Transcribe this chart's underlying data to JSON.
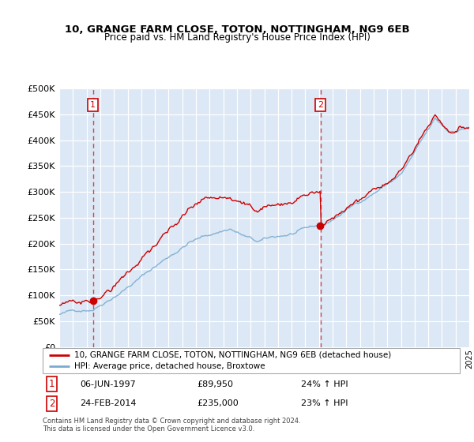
{
  "title": "10, GRANGE FARM CLOSE, TOTON, NOTTINGHAM, NG9 6EB",
  "subtitle": "Price paid vs. HM Land Registry's House Price Index (HPI)",
  "legend_line1": "10, GRANGE FARM CLOSE, TOTON, NOTTINGHAM, NG9 6EB (detached house)",
  "legend_line2": "HPI: Average price, detached house, Broxtowe",
  "purchase1_date": "06-JUN-1997",
  "purchase1_price": 89950,
  "purchase1_label": "1",
  "purchase1_hpi_text": "24% ↑ HPI",
  "purchase1_year": 1997.46,
  "purchase2_date": "24-FEB-2014",
  "purchase2_price": 235000,
  "purchase2_label": "2",
  "purchase2_hpi_text": "23% ↑ HPI",
  "purchase2_year": 2014.12,
  "footnote": "Contains HM Land Registry data © Crown copyright and database right 2024.\nThis data is licensed under the Open Government Licence v3.0.",
  "red_color": "#cc0000",
  "blue_color": "#7aabcf",
  "bg_color": "#dce8f5",
  "ylim_min": 0,
  "ylim_max": 500000,
  "yticks": [
    0,
    50000,
    100000,
    150000,
    200000,
    250000,
    300000,
    350000,
    400000,
    450000,
    500000
  ],
  "xstart_year": 1995,
  "xend_year": 2025
}
